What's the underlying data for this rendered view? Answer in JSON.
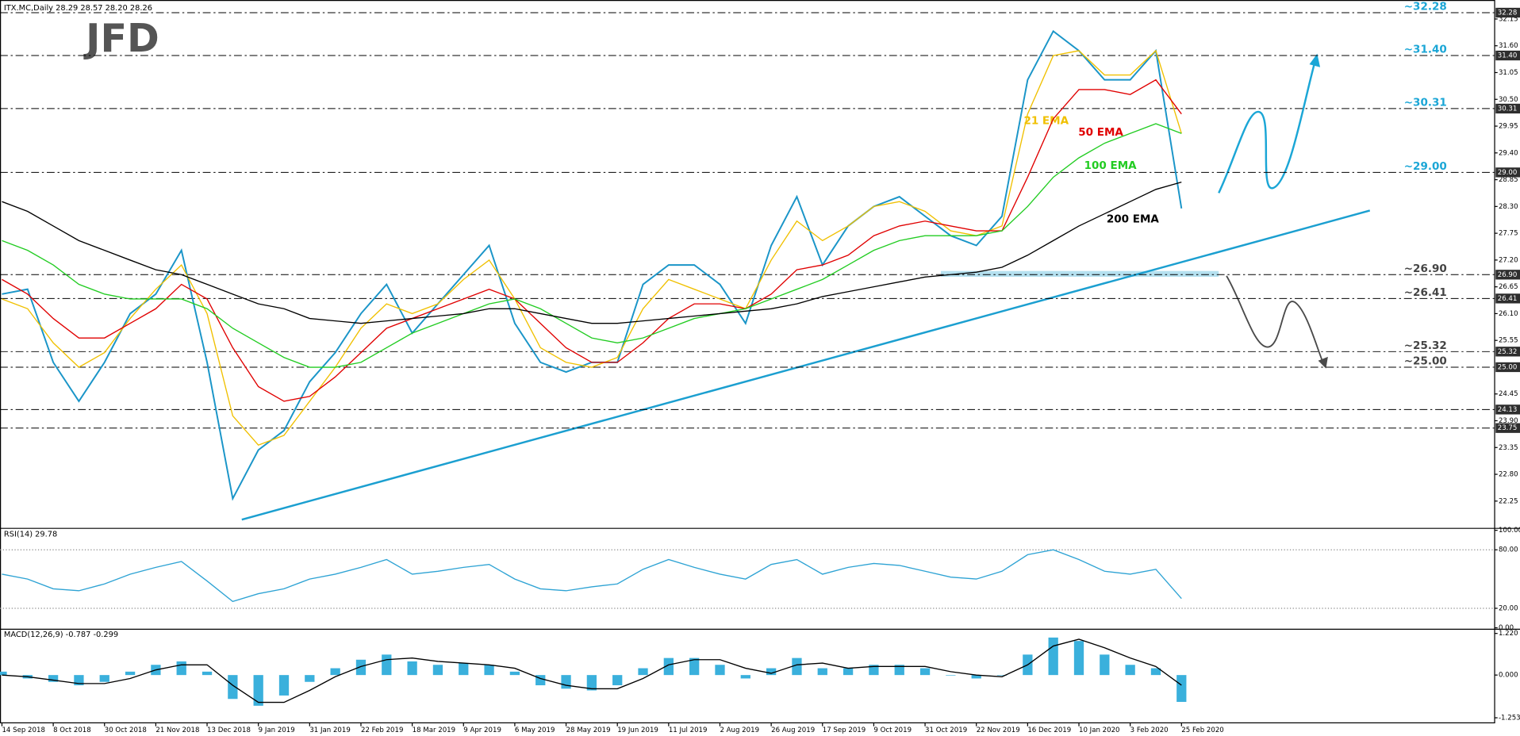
{
  "logo": "JFD",
  "chart_data": [
    {
      "type": "line",
      "title": "ITX.MC,Daily  28.29 28.57 28.20 28.26",
      "categories": [
        "14 Sep 2018",
        null,
        "8 Oct 2018",
        null,
        "30 Oct 2018",
        null,
        "21 Nov 2018",
        null,
        "13 Dec 2018",
        null,
        "9 Jan 2019",
        null,
        "31 Jan 2019",
        null,
        "22 Feb 2019",
        null,
        "18 Mar 2019",
        null,
        "9 Apr 2019",
        null,
        "6 May 2019",
        null,
        "28 May 2019",
        null,
        "19 Jun 2019",
        null,
        "11 Jul 2019",
        null,
        "2 Aug 2019",
        null,
        "26 Aug 2019",
        null,
        "17 Sep 2019",
        null,
        "9 Oct 2019",
        null,
        "31 Oct 2019",
        null,
        "22 Nov 2019",
        null,
        "16 Dec 2019",
        null,
        "10 Jan 2020",
        null,
        "3 Feb 2020",
        null,
        "25 Feb 2020"
      ],
      "series": [
        {
          "color": "#1a95c8",
          "values": [
            26.5,
            26.6,
            25.1,
            24.3,
            25.1,
            26.1,
            26.5,
            27.4,
            25.1,
            22.3,
            23.3,
            23.7,
            24.7,
            25.3,
            26.1,
            26.7,
            25.7,
            26.3,
            26.9,
            27.5,
            25.9,
            25.1,
            24.9,
            25.1,
            25.1,
            26.7,
            27.1,
            27.1,
            26.7,
            25.9,
            27.5,
            28.5,
            27.1,
            27.9,
            28.3,
            28.5,
            28.1,
            27.7,
            27.5,
            28.1,
            30.9,
            31.9,
            31.5,
            30.9,
            30.9,
            31.5,
            28.26
          ]
        },
        {
          "name": "21 EMA",
          "color": "#f0c000",
          "values": [
            26.4,
            26.2,
            25.5,
            25.0,
            25.3,
            26.0,
            26.6,
            27.1,
            26.1,
            24.0,
            23.4,
            23.6,
            24.3,
            25.0,
            25.8,
            26.3,
            26.1,
            26.3,
            26.8,
            27.2,
            26.4,
            25.4,
            25.1,
            25.0,
            25.2,
            26.2,
            26.8,
            26.6,
            26.4,
            26.2,
            27.2,
            28.0,
            27.6,
            27.9,
            28.3,
            28.4,
            28.2,
            27.8,
            27.7,
            27.9,
            30.2,
            31.4,
            31.5,
            31.0,
            31.0,
            31.5,
            29.8
          ]
        },
        {
          "name": "50 EMA",
          "color": "#e00000",
          "values": [
            26.8,
            26.5,
            26.0,
            25.6,
            25.6,
            25.9,
            26.2,
            26.7,
            26.4,
            25.4,
            24.6,
            24.3,
            24.4,
            24.8,
            25.3,
            25.8,
            26.0,
            26.2,
            26.4,
            26.6,
            26.4,
            25.9,
            25.4,
            25.1,
            25.1,
            25.5,
            26.0,
            26.3,
            26.3,
            26.2,
            26.5,
            27.0,
            27.1,
            27.3,
            27.7,
            27.9,
            28.0,
            27.9,
            27.8,
            27.8,
            28.9,
            30.1,
            30.7,
            30.7,
            30.6,
            30.9,
            30.2
          ]
        },
        {
          "name": "100 EMA",
          "color": "#22cc22",
          "values": [
            27.6,
            27.4,
            27.1,
            26.7,
            26.5,
            26.4,
            26.4,
            26.4,
            26.2,
            25.8,
            25.5,
            25.2,
            25.0,
            25.0,
            25.1,
            25.4,
            25.7,
            25.9,
            26.1,
            26.3,
            26.4,
            26.2,
            25.9,
            25.6,
            25.5,
            25.6,
            25.8,
            26.0,
            26.1,
            26.2,
            26.4,
            26.6,
            26.8,
            27.1,
            27.4,
            27.6,
            27.7,
            27.7,
            27.7,
            27.8,
            28.3,
            28.9,
            29.3,
            29.6,
            29.8,
            30.0,
            29.8
          ]
        },
        {
          "name": "200 EMA",
          "color": "#000000",
          "values": [
            28.4,
            28.2,
            27.9,
            27.6,
            27.4,
            27.2,
            27.0,
            26.9,
            26.7,
            26.5,
            26.3,
            26.2,
            26.0,
            25.95,
            25.9,
            25.95,
            26.0,
            26.05,
            26.1,
            26.2,
            26.2,
            26.1,
            26.0,
            25.9,
            25.9,
            25.95,
            26.0,
            26.05,
            26.1,
            26.15,
            26.2,
            26.3,
            26.45,
            26.55,
            26.65,
            26.75,
            26.85,
            26.9,
            26.95,
            27.05,
            27.3,
            27.6,
            27.9,
            28.15,
            28.4,
            28.65,
            28.8
          ]
        }
      ],
      "ylim": [
        21.73,
        32.46
      ],
      "yticks": [
        {
          "value": 22.25,
          "label": "22.25"
        },
        {
          "value": 22.8,
          "label": "22.80"
        },
        {
          "value": 23.35,
          "label": "23.35"
        },
        {
          "value": 23.9,
          "label": "23.90"
        },
        {
          "value": 24.45,
          "label": "24.45"
        },
        {
          "value": 25.55,
          "label": "25.55"
        },
        {
          "value": 26.1,
          "label": "26.10"
        },
        {
          "value": 26.65,
          "label": "26.65"
        },
        {
          "value": 27.2,
          "label": "27.20"
        },
        {
          "value": 27.75,
          "label": "27.75"
        },
        {
          "value": 28.3,
          "label": "28.30"
        },
        {
          "value": 28.85,
          "label": "28.85"
        },
        {
          "value": 29.4,
          "label": "29.40"
        },
        {
          "value": 29.95,
          "label": "29.95"
        },
        {
          "value": 30.5,
          "label": "30.50"
        },
        {
          "value": 31.05,
          "label": "31.05"
        },
        {
          "value": 31.6,
          "label": "31.60"
        },
        {
          "value": 32.15,
          "label": "32.15"
        }
      ],
      "levels": [
        {
          "value": 32.28,
          "label": "32.28"
        },
        {
          "value": 31.4,
          "label": "31.40"
        },
        {
          "value": 30.31,
          "label": "30.31"
        },
        {
          "value": 29.0,
          "label": "29.00"
        },
        {
          "value": 26.9,
          "label": "26.90"
        },
        {
          "value": 26.41,
          "label": "26.41"
        },
        {
          "value": 25.32,
          "label": "25.32"
        },
        {
          "value": 25.0,
          "label": "25.00"
        },
        {
          "value": 24.13,
          "label": "24.13"
        },
        {
          "value": 23.75,
          "label": "23.75"
        }
      ],
      "annotations": [
        {
          "value": 32.28,
          "label": "~32.28",
          "color": "#1ba6d6"
        },
        {
          "value": 31.4,
          "label": "~31.40",
          "color": "#1ba6d6"
        },
        {
          "value": 30.31,
          "label": "~30.31",
          "color": "#1ba6d6"
        },
        {
          "value": 29.0,
          "label": "~29.00",
          "color": "#1ba6d6"
        },
        {
          "value": 26.9,
          "label": "~26.90",
          "color": "#444444"
        },
        {
          "value": 26.41,
          "label": "~26.41",
          "color": "#444444"
        },
        {
          "value": 25.32,
          "label": "~25.32",
          "color": "#444444"
        },
        {
          "value": 25.0,
          "label": "~25.00",
          "color": "#444444"
        }
      ]
    },
    {
      "type": "line",
      "title": "RSI(14) 29.78",
      "series": [
        {
          "color": "#2ea3d4",
          "values": [
            55,
            50,
            40,
            38,
            45,
            55,
            62,
            68,
            48,
            27,
            35,
            40,
            50,
            55,
            62,
            70,
            55,
            58,
            62,
            65,
            50,
            40,
            38,
            42,
            45,
            60,
            70,
            62,
            55,
            50,
            65,
            70,
            55,
            62,
            66,
            64,
            58,
            52,
            50,
            58,
            75,
            80,
            70,
            58,
            55,
            60,
            30
          ]
        }
      ],
      "ylim": [
        0,
        100
      ],
      "yticks": [
        {
          "value": 0,
          "label": "0.00"
        },
        {
          "value": 20,
          "label": "20.00"
        },
        {
          "value": 80,
          "label": "80.00"
        },
        {
          "value": 100,
          "label": "100.00"
        }
      ]
    },
    {
      "type": "combo",
      "title": "MACD(12,26,9) -0.787 -0.299",
      "series": [
        {
          "type": "bar",
          "color": "#3ab0dc",
          "values": [
            0.1,
            -0.1,
            -0.2,
            -0.3,
            -0.2,
            0.1,
            0.3,
            0.4,
            0.1,
            -0.7,
            -0.9,
            -0.6,
            -0.2,
            0.2,
            0.45,
            0.6,
            0.4,
            0.3,
            0.35,
            0.3,
            0.1,
            -0.3,
            -0.4,
            -0.45,
            -0.3,
            0.2,
            0.5,
            0.5,
            0.3,
            -0.1,
            0.2,
            0.5,
            0.2,
            0.2,
            0.3,
            0.3,
            0.2,
            0,
            -0.1,
            0,
            0.6,
            1.1,
            1.0,
            0.6,
            0.3,
            0.2,
            -0.787
          ]
        },
        {
          "type": "line",
          "color": "#000000",
          "values": [
            0,
            -0.05,
            -0.15,
            -0.25,
            -0.25,
            -0.1,
            0.15,
            0.3,
            0.3,
            -0.3,
            -0.8,
            -0.8,
            -0.45,
            -0.05,
            0.25,
            0.45,
            0.5,
            0.4,
            0.35,
            0.3,
            0.2,
            -0.1,
            -0.3,
            -0.4,
            -0.4,
            -0.1,
            0.3,
            0.45,
            0.45,
            0.2,
            0.05,
            0.3,
            0.35,
            0.2,
            0.25,
            0.25,
            0.25,
            0.1,
            0,
            -0.05,
            0.3,
            0.85,
            1.05,
            0.8,
            0.5,
            0.25,
            -0.299
          ]
        }
      ],
      "ylim": [
        -1.33,
        1.3
      ],
      "yticks": [
        {
          "value": -1.253,
          "label": "-1.253"
        },
        {
          "value": 0,
          "label": "0.000"
        },
        {
          "value": 1.22,
          "label": "1.220"
        }
      ]
    }
  ]
}
